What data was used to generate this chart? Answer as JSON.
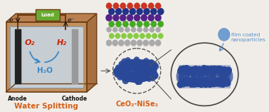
{
  "bg_color": "#f0ede8",
  "labels": {
    "anode": "Anode",
    "cathode": "Cathode",
    "water_splitting": "Water Splitting",
    "load": "Load",
    "o2": "O₂",
    "h2": "H₂",
    "h2o": "H₂O",
    "ceo2_nise2": "CeO₂-NiSe₂",
    "film_coated": "film coated\nnanoparticles",
    "e_left": "e⁻",
    "e_right": "e⁻"
  },
  "colors": {
    "orange_text": "#d4601a",
    "dark_text": "#111111",
    "blue_arrow": "#3a88c8",
    "wire_color": "#6b3a10",
    "load_green": "#6aaa30",
    "nanoparticle_blue": "#2a4898",
    "nanotube_blue": "#2a4898",
    "ball_blue": "#5a90cc",
    "wall_outer": "#c09060",
    "wall_inner": "#c8d8e8",
    "wall_side": "#a87040",
    "wall_top": "#b88050",
    "crystal_red": "#cc3322",
    "crystal_darkblue": "#223388",
    "crystal_purple": "#552288",
    "crystal_green": "#44aa22",
    "crystal_lightgreen": "#88cc44",
    "crystal_gray": "#aaaaaa",
    "crystal_white": "#dddddd"
  }
}
